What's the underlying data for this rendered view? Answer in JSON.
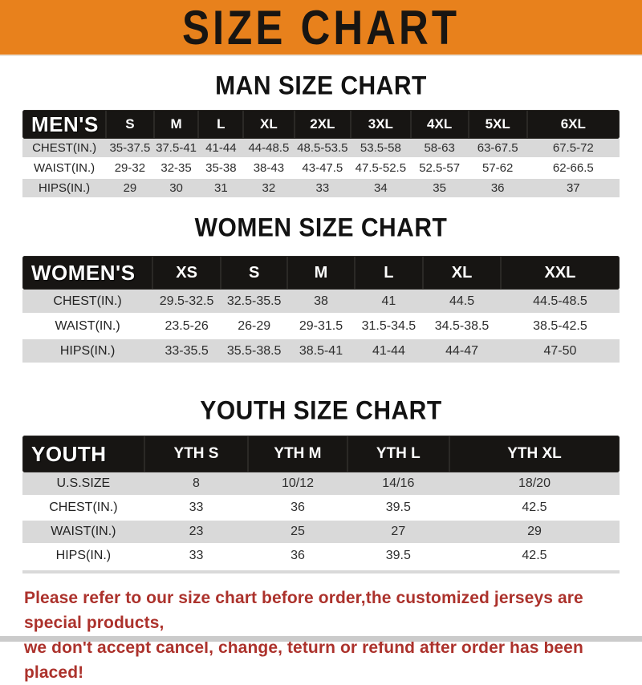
{
  "banner": {
    "title": "SIZE CHART"
  },
  "colors": {
    "banner_bg": "#E8811C",
    "bar_bg": "#171513",
    "row_gray": "#D9D9D9",
    "note_red": "#AC322C",
    "bottom_strip": "#CBCBCB"
  },
  "sections": [
    {
      "heading": "MAN SIZE CHART",
      "header": {
        "label": "MEN'S",
        "sizes": [
          "S",
          "M",
          "L",
          "XL",
          "2XL",
          "3XL",
          "4XL",
          "5XL",
          "6XL"
        ]
      },
      "rows": [
        {
          "label": "CHEST(IN.)",
          "values": [
            "35-37.5",
            "37.5-41",
            "41-44",
            "44-48.5",
            "48.5-53.5",
            "53.5-58",
            "58-63",
            "63-67.5",
            "67.5-72"
          ]
        },
        {
          "label": "WAIST(IN.)",
          "values": [
            "29-32",
            "32-35",
            "35-38",
            "38-43",
            "43-47.5",
            "47.5-52.5",
            "52.5-57",
            "57-62",
            "62-66.5"
          ]
        },
        {
          "label": "HIPS(IN.)",
          "values": [
            "29",
            "30",
            "31",
            "32",
            "33",
            "34",
            "35",
            "36",
            "37"
          ]
        }
      ]
    },
    {
      "heading": "WOMEN SIZE CHART",
      "header": {
        "label": "WOMEN'S",
        "sizes": [
          "XS",
          "S",
          "M",
          "L",
          "XL",
          "XXL"
        ]
      },
      "rows": [
        {
          "label": "CHEST(IN.)",
          "values": [
            "29.5-32.5",
            "32.5-35.5",
            "38",
            "41",
            "44.5",
            "44.5-48.5"
          ]
        },
        {
          "label": "WAIST(IN.)",
          "values": [
            "23.5-26",
            "26-29",
            "29-31.5",
            "31.5-34.5",
            "34.5-38.5",
            "38.5-42.5"
          ]
        },
        {
          "label": "HIPS(IN.)",
          "values": [
            "33-35.5",
            "35.5-38.5",
            "38.5-41",
            "41-44",
            "44-47",
            "47-50"
          ]
        }
      ]
    },
    {
      "heading": "YOUTH SIZE CHART",
      "header": {
        "label": "YOUTH",
        "sizes": [
          "YTH S",
          "YTH M",
          "YTH L",
          "YTH XL"
        ]
      },
      "rows": [
        {
          "label": "U.S.SIZE",
          "values": [
            "8",
            "10/12",
            "14/16",
            "18/20"
          ]
        },
        {
          "label": "CHEST(IN.)",
          "values": [
            "33",
            "36",
            "39.5",
            "42.5"
          ]
        },
        {
          "label": "WAIST(IN.)",
          "values": [
            "23",
            "25",
            "27",
            "29"
          ]
        },
        {
          "label": "HIPS(IN.)",
          "values": [
            "33",
            "36",
            "39.5",
            "42.5"
          ]
        }
      ]
    }
  ],
  "footer": {
    "line1": "Please refer to our size chart before order,the customized jerseys are special products,",
    "line2": "we don't accept cancel, change, teturn or refund after order has been placed!"
  }
}
